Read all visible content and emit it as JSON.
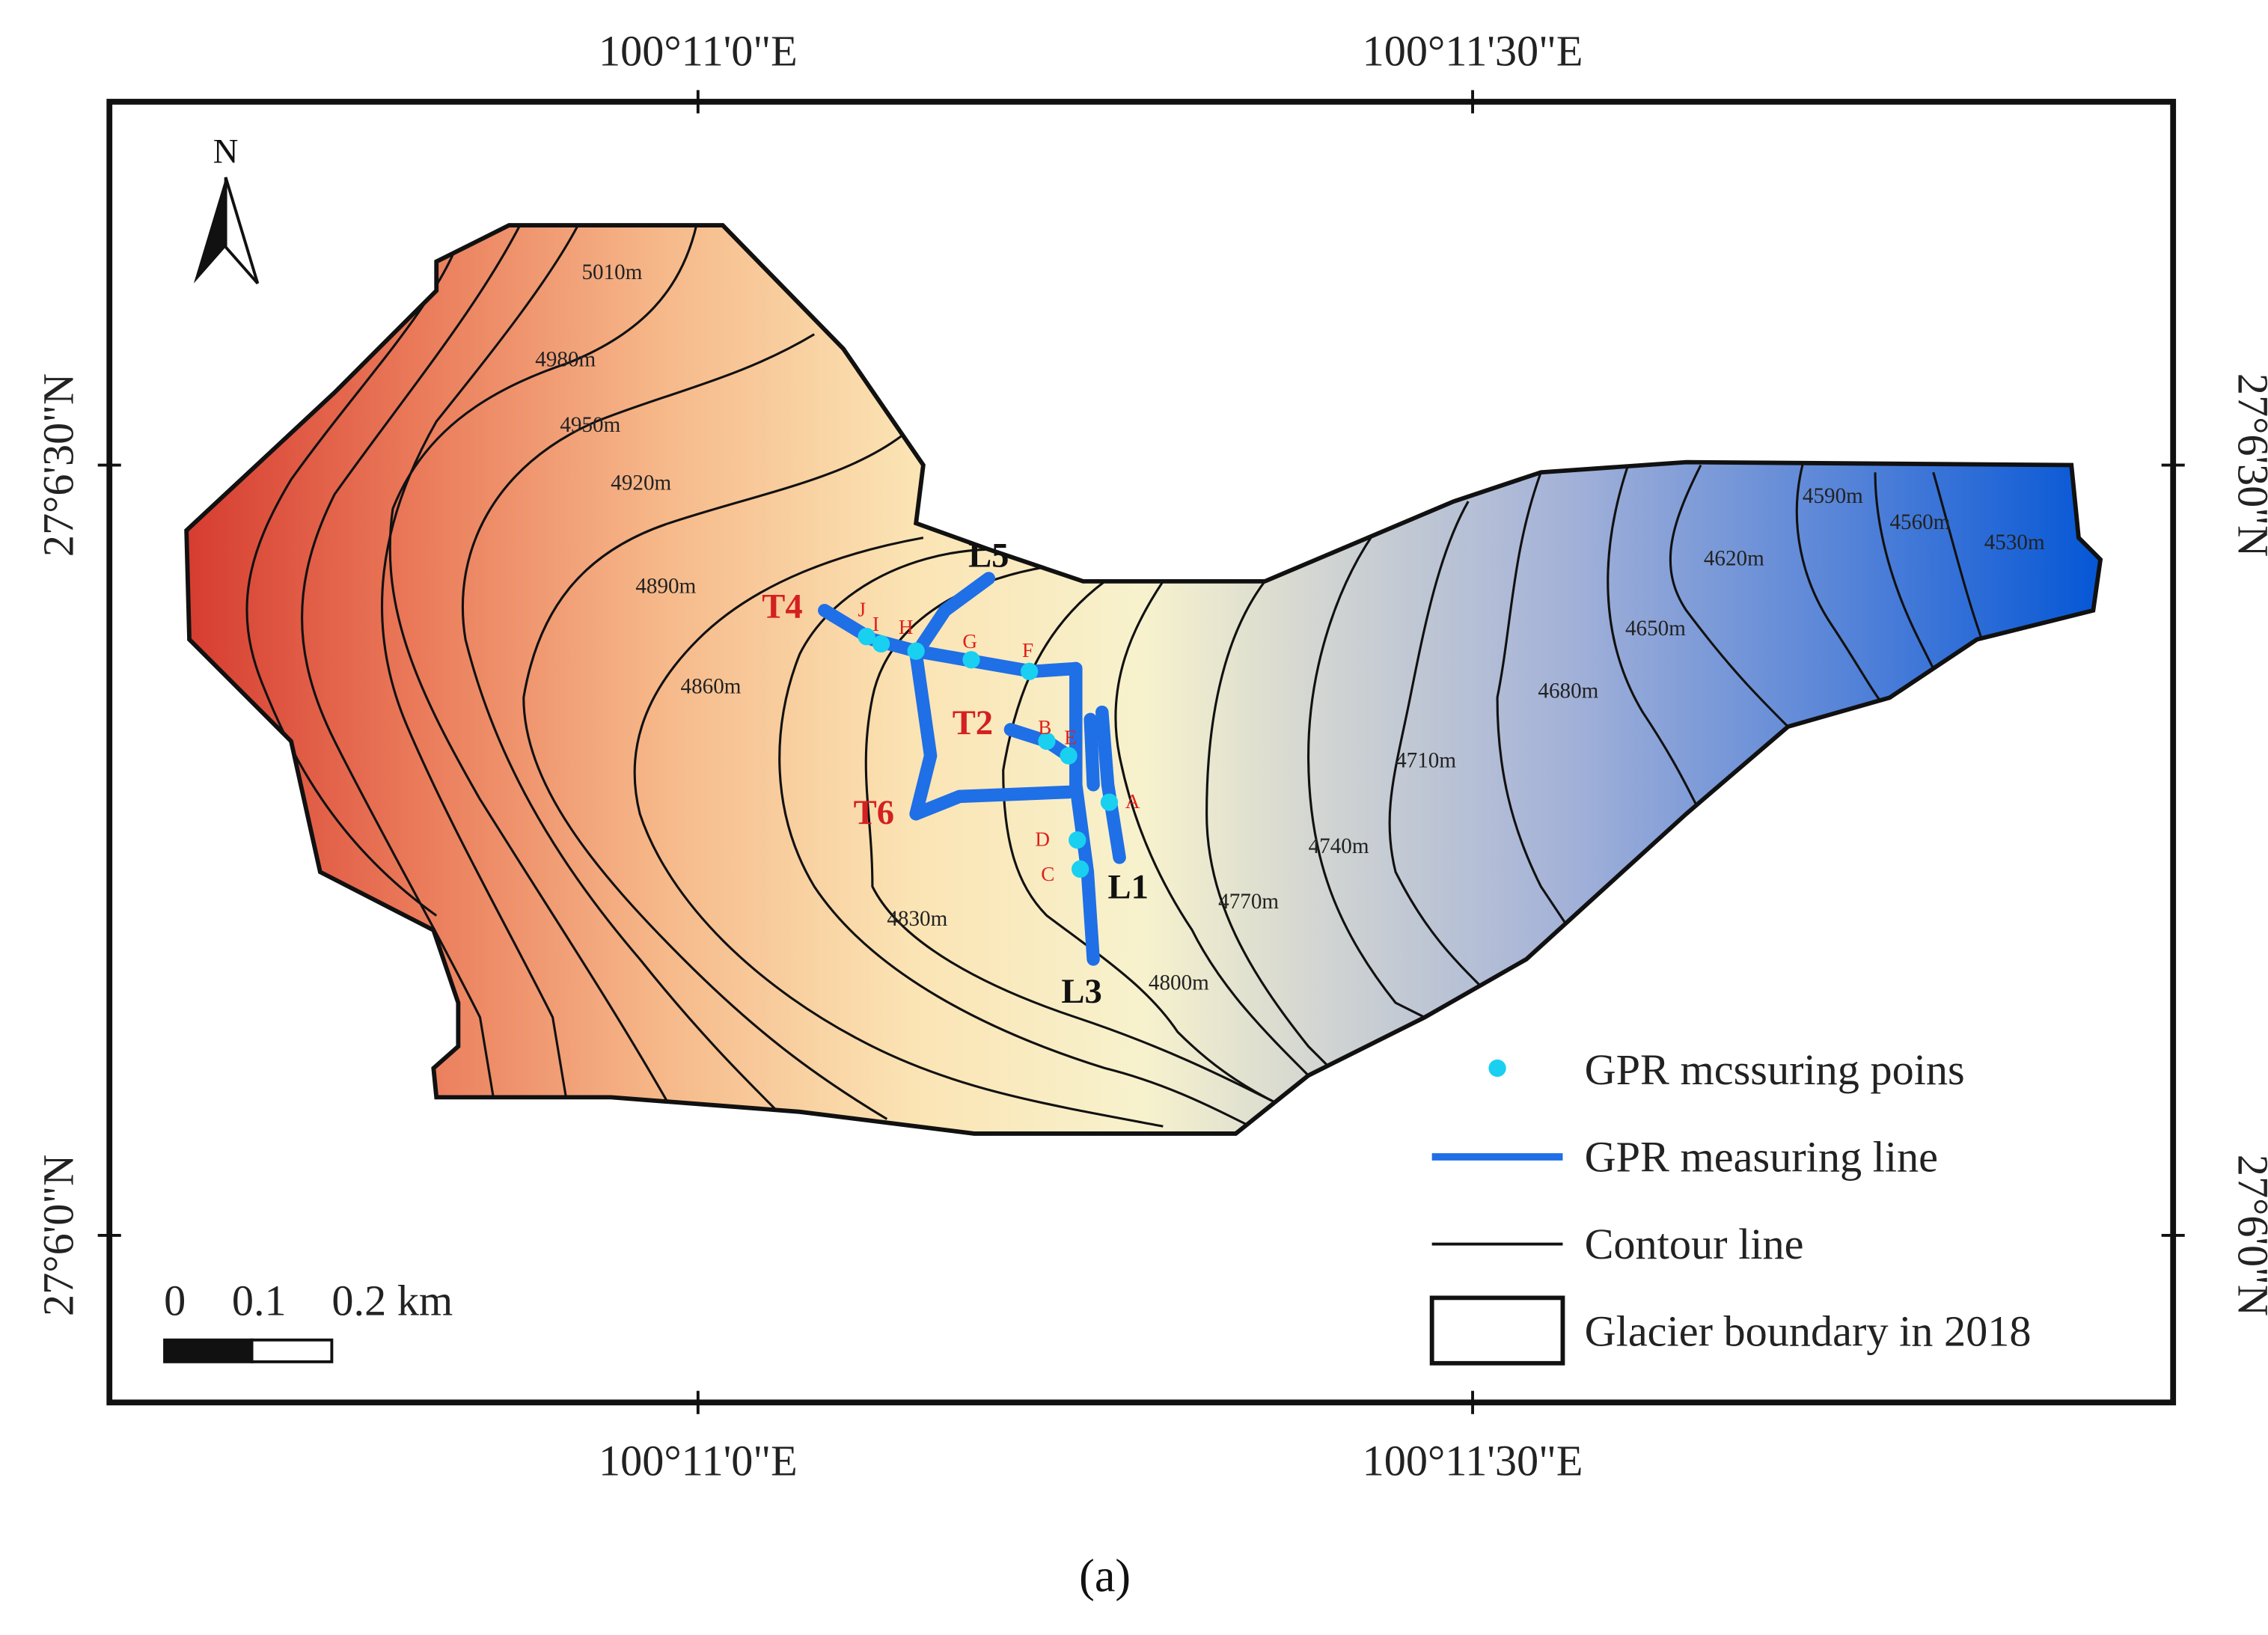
{
  "map": {
    "longitude_labels": [
      "100°11'0\"E",
      "100°11'30\"E"
    ],
    "latitude_labels": [
      "27°6'30\"N",
      "27°6'0\"N"
    ],
    "north": "N",
    "contours": [
      "5010m",
      "4980m",
      "4950m",
      "4920m",
      "4890m",
      "4860m",
      "4830m",
      "4800m",
      "4770m",
      "4740m",
      "4710m",
      "4680m",
      "4650m",
      "4620m",
      "4590m",
      "4560m",
      "4530m"
    ],
    "line_labels": [
      "T4",
      "L5",
      "T2",
      "T6",
      "L1",
      "L3"
    ],
    "point_labels": [
      "J",
      "I",
      "H",
      "G",
      "F",
      "B",
      "E",
      "A",
      "D",
      "C"
    ],
    "scale_bar": [
      "0",
      "0.1",
      "0.2 km"
    ],
    "legend": [
      "GPR mcssuring poins",
      "GPR measuring line",
      "Contour line",
      "Glacier boundary in 2018"
    ],
    "caption": "(a)"
  }
}
